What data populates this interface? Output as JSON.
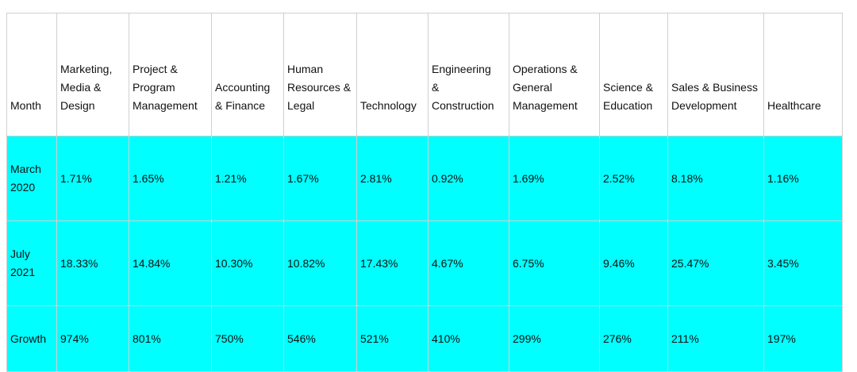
{
  "chart_data": {
    "type": "table",
    "columns": [
      "Month",
      "Marketing,\nMedia &\nDesign",
      "Project &\nProgram\nManagement",
      "Accounting\n& Finance",
      "Human\nResources &\nLegal",
      "Technology",
      "Engineering\n&\nConstruction",
      "Operations &\nGeneral\nManagement",
      "Science &\nEducation",
      "Sales & Business\nDevelopment",
      "Healthcare"
    ],
    "rows": [
      {
        "label": "March\n2020",
        "values": [
          "1.71%",
          "1.65%",
          "1.21%",
          "1.67%",
          "2.81%",
          "0.92%",
          "1.69%",
          "2.52%",
          "8.18%",
          "1.16%"
        ]
      },
      {
        "label": "July\n2021",
        "values": [
          "18.33%",
          "14.84%",
          "10.30%",
          "10.82%",
          "17.43%",
          "4.67%",
          "6.75%",
          "9.46%",
          "25.47%",
          "3.45%"
        ]
      },
      {
        "label": "Growth",
        "values": [
          "974%",
          "801%",
          "750%",
          "546%",
          "521%",
          "410%",
          "299%",
          "276%",
          "211%",
          "197%"
        ]
      }
    ],
    "body_background": "#00ffff",
    "header_background": "#ffffff",
    "border_color": "#d0d0d0"
  }
}
